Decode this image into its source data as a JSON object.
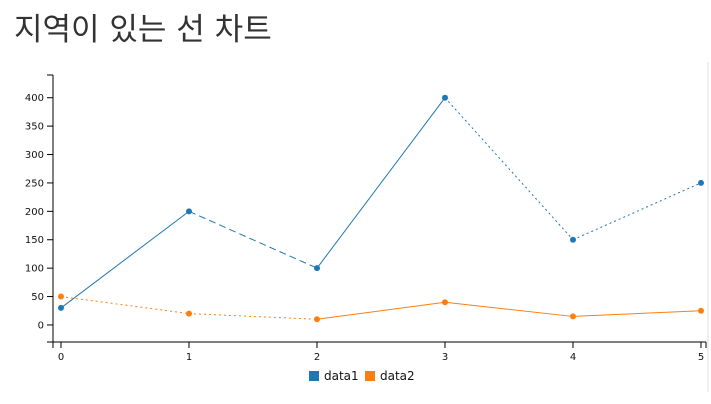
{
  "page_title": "지역이 있는 선 차트",
  "colors": {
    "data1": "#1f77b4",
    "data2": "#ff7f0e",
    "axis": "#000000",
    "title": "#333333"
  },
  "chart_data": {
    "type": "line",
    "title": "",
    "xlabel": "",
    "ylabel": "",
    "x": [
      0,
      1,
      2,
      3,
      4,
      5
    ],
    "x_ticks": [
      "0",
      "1",
      "2",
      "3",
      "4",
      "5"
    ],
    "y_ticks": [
      "0",
      "50",
      "100",
      "150",
      "200",
      "250",
      "300",
      "350",
      "400"
    ],
    "xlim": [
      0,
      5
    ],
    "ylim": [
      -30,
      440
    ],
    "grid": false,
    "legend_position": "bottom",
    "series": [
      {
        "name": "data1",
        "values": [
          30,
          200,
          100,
          400,
          150,
          250
        ],
        "segment_styles": [
          "solid",
          "dashed",
          "solid",
          "dotted",
          "dotted"
        ]
      },
      {
        "name": "data2",
        "values": [
          50,
          20,
          10,
          40,
          15,
          25
        ],
        "segment_styles": [
          "dotted",
          "dotted",
          "solid",
          "solid",
          "solid"
        ]
      }
    ]
  }
}
